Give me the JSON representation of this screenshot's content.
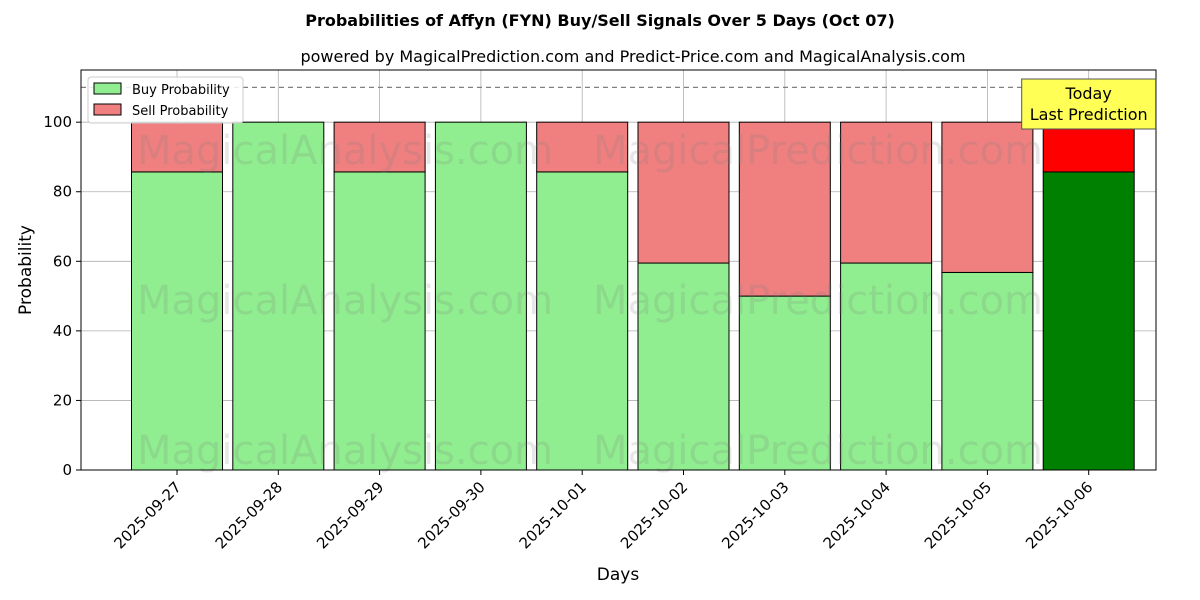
{
  "chart_data": {
    "type": "bar",
    "stacked": true,
    "title": "Probabilities of Affyn (FYN) Buy/Sell Signals Over 5 Days (Oct 07)",
    "subtitle": "powered by MagicalPrediction.com and Predict-Price.com and MagicalAnalysis.com",
    "xlabel": "Days",
    "ylabel": "Probability",
    "ylim": [
      0,
      115
    ],
    "yticks": [
      0,
      20,
      40,
      60,
      80,
      100
    ],
    "grid": true,
    "legend_position": "top-left",
    "categories": [
      "2025-09-27",
      "2025-09-28",
      "2025-09-29",
      "2025-09-30",
      "2025-10-01",
      "2025-10-02",
      "2025-10-03",
      "2025-10-04",
      "2025-10-05",
      "2025-10-06"
    ],
    "series": [
      {
        "name": "Buy Probability",
        "color": "#90ee90",
        "values": [
          85.7,
          100,
          85.7,
          100,
          85.7,
          59.5,
          50,
          59.5,
          56.8,
          85.7
        ]
      },
      {
        "name": "Sell Probability",
        "color": "#f08080",
        "values": [
          14.3,
          0,
          14.3,
          0,
          14.3,
          40.5,
          50,
          40.5,
          43.2,
          14.3
        ]
      }
    ],
    "highlight": {
      "index": 9,
      "buy_color": "#008000",
      "sell_color": "#ff0000"
    },
    "reference_line": {
      "y": 110,
      "style": "dashed",
      "color": "#808080"
    },
    "annotation": {
      "lines": [
        "Today",
        "Last Prediction"
      ],
      "category_index": 9,
      "y": 110,
      "background": "#ffff55"
    },
    "watermarks": [
      "MagicalAnalysis.com",
      "MagicalPrediction.com",
      "MagicalAnalysis.com",
      "MagicalPrediction.com",
      "MagicalAnalysis.com",
      "MagicalPrediction.com"
    ]
  }
}
